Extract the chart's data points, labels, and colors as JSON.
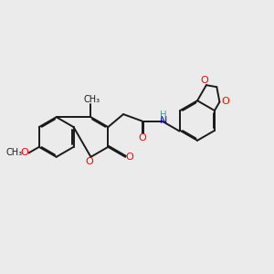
{
  "bg_color": "#ebebeb",
  "bond_color": "#1a1a1a",
  "oxygen_color": "#ff0000",
  "nitrogen_color": "#0000cc",
  "hydrogen_color": "#4d9999",
  "lw": 1.4,
  "dbo": 0.055,
  "figsize": [
    3.0,
    3.0
  ],
  "dpi": 100,
  "xlim": [
    -5.5,
    8.0
  ],
  "ylim": [
    -3.8,
    3.8
  ]
}
